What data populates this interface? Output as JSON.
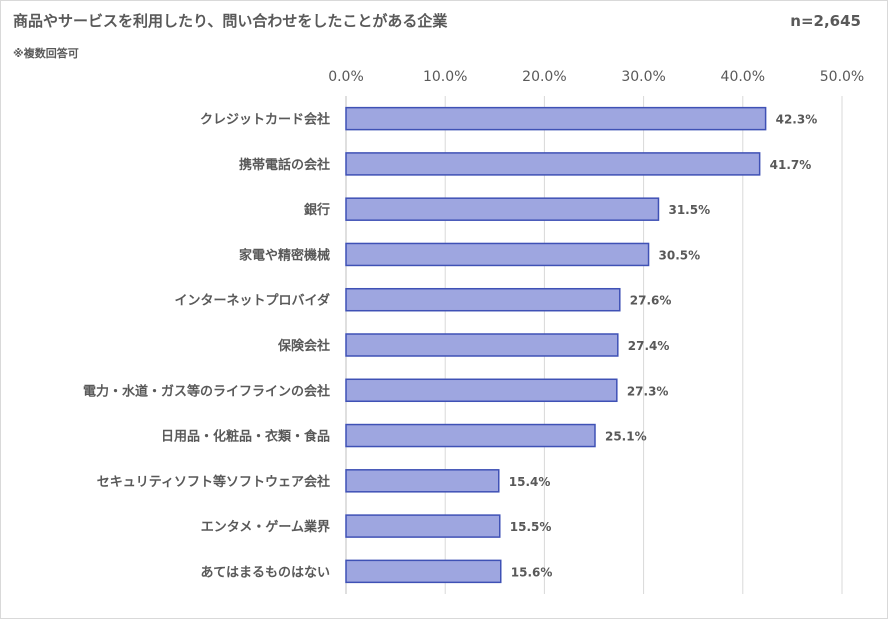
{
  "chart_data": {
    "type": "bar",
    "orientation": "horizontal",
    "title": "商品やサービスを利用したり、問い合わせをしたことがある企業",
    "subtitle": "※複数回答可",
    "sample_size": "n=2,645",
    "categories": [
      "クレジットカード会社",
      "携帯電話の会社",
      "銀行",
      "家電や精密機械",
      "インターネットプロバイダ",
      "保険会社",
      "電力・水道・ガス等のライフラインの会社",
      "日用品・化粧品・衣類・食品",
      "セキュリティソフト等ソフトウェア会社",
      "エンタメ・ゲーム業界",
      "あてはまるものはない"
    ],
    "values": [
      42.3,
      41.7,
      31.5,
      30.5,
      27.6,
      27.4,
      27.3,
      25.1,
      15.4,
      15.5,
      15.6
    ],
    "data_labels": [
      "42.3%",
      "41.7%",
      "31.5%",
      "30.5%",
      "27.6%",
      "27.4%",
      "27.3%",
      "25.1%",
      "15.4%",
      "15.5%",
      "15.6%"
    ],
    "xlim": [
      0,
      50
    ],
    "x_ticks": [
      0,
      10,
      20,
      30,
      40,
      50
    ],
    "x_tick_labels": [
      "0.0%",
      "10.0%",
      "20.0%",
      "30.0%",
      "40.0%",
      "50.0%"
    ],
    "axis_position": "top",
    "grid": true,
    "bar_color": "#9ea6e0",
    "bar_edge_color": "#3f51b5",
    "grid_color": "#d9d9d9"
  }
}
